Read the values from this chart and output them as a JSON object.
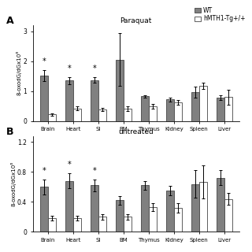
{
  "panel_A_title": "Paraquat",
  "panel_B_title": "untreated",
  "categories": [
    "Brain",
    "Heart",
    "SI",
    "BM",
    "Thymus",
    "Kidney",
    "Spleen",
    "Liver"
  ],
  "ylabel_A": "8-oxodG/dGx10⁶",
  "ylabel_B": "8-oxodG/dGx10⁶",
  "wt_color": "#808080",
  "tg_color": "#ffffff",
  "legend_wt": "WT",
  "legend_tg": "hMTH1-Tg+/+",
  "panel_A_wt_vals": [
    1.52,
    1.35,
    1.37,
    2.05,
    0.82,
    0.72,
    0.97,
    0.78
  ],
  "panel_A_wt_err": [
    0.18,
    0.12,
    0.1,
    0.88,
    0.05,
    0.06,
    0.18,
    0.08
  ],
  "panel_A_tg_vals": [
    0.22,
    0.42,
    0.38,
    0.4,
    0.48,
    0.63,
    1.18,
    0.8
  ],
  "panel_A_tg_err": [
    0.04,
    0.07,
    0.05,
    0.08,
    0.08,
    0.08,
    0.1,
    0.25
  ],
  "panel_B_wt_vals": [
    0.6,
    0.68,
    0.62,
    0.42,
    0.62,
    0.55,
    0.64,
    0.72
  ],
  "panel_B_wt_err": [
    0.1,
    0.1,
    0.08,
    0.06,
    0.06,
    0.06,
    0.18,
    0.1
  ],
  "panel_B_tg_vals": [
    0.18,
    0.18,
    0.2,
    0.2,
    0.33,
    0.32,
    0.67,
    0.44
  ],
  "panel_B_tg_err": [
    0.03,
    0.03,
    0.04,
    0.04,
    0.05,
    0.06,
    0.22,
    0.08
  ],
  "panel_A_star": [
    true,
    true,
    true,
    false,
    false,
    false,
    false,
    false
  ],
  "panel_B_star": [
    true,
    true,
    true,
    false,
    false,
    false,
    false,
    false
  ],
  "panel_A_ylim": [
    0,
    3.2
  ],
  "panel_B_ylim": [
    0,
    1.28
  ],
  "panel_A_yticks": [
    0,
    1,
    2,
    3
  ],
  "panel_B_yticks": [
    0,
    0.4,
    0.8,
    1.2
  ],
  "bar_width": 0.32,
  "edgecolor": "#444444",
  "background_color": "#ffffff"
}
